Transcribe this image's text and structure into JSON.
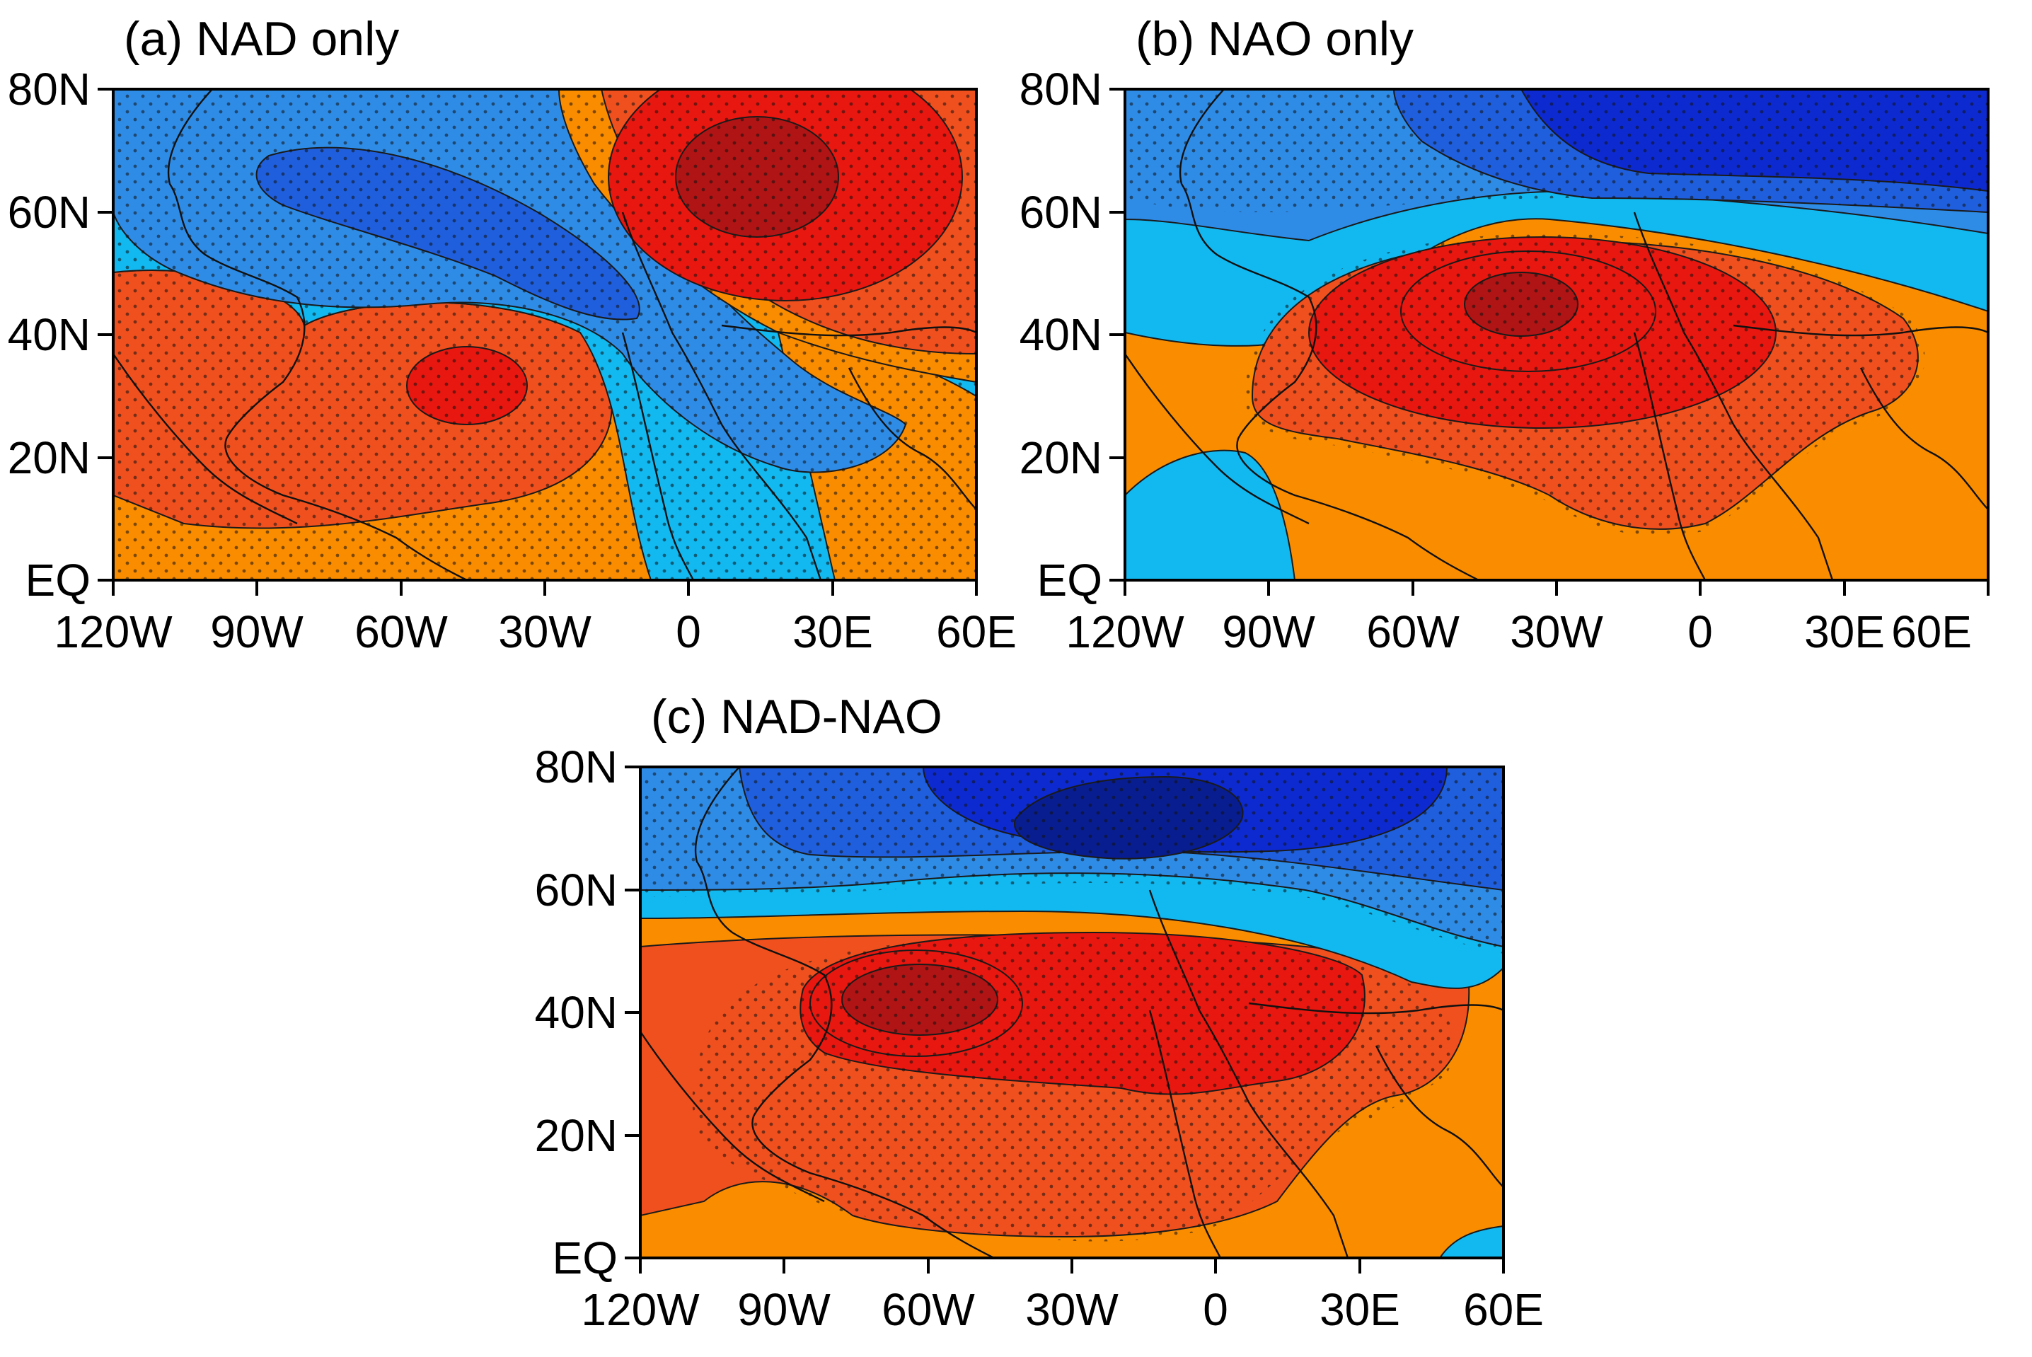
{
  "figure": {
    "panels": [
      {
        "id": "a",
        "title": "(a) NAD only"
      },
      {
        "id": "b",
        "title": "(b) NAO only"
      },
      {
        "id": "c",
        "title": "(c) NAD-NAO"
      }
    ],
    "lat_ticks": [
      "80N",
      "60N",
      "40N",
      "20N",
      "EQ"
    ],
    "lon_ticks": [
      "120W",
      "90W",
      "60W",
      "30W",
      "0",
      "30E",
      "60E"
    ],
    "extent": {
      "lon": [
        -120,
        60
      ],
      "lat": [
        0,
        80
      ]
    },
    "colors": {
      "dark_red": "#b01414",
      "red": "#e8170f",
      "red_orange": "#f0501e",
      "orange": "#fa8c00",
      "light_blue": "#12b8f0",
      "blue_mid": "#2f8ce6",
      "blue": "#1f5fdd",
      "dark_blue": "#0d2ad0",
      "navy": "#081d8f",
      "contour": "#1a1a1a",
      "coast": "#111111"
    }
  }
}
